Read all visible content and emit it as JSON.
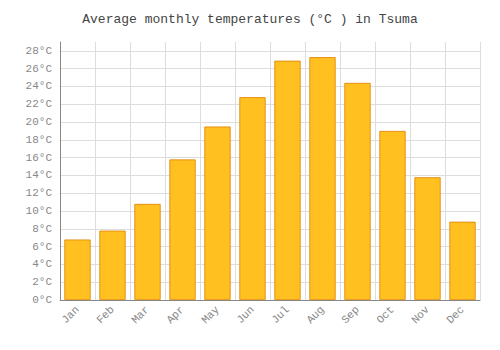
{
  "chart_data": {
    "type": "bar",
    "title": "Average monthly temperatures (°C ) in Tsuma",
    "categories": [
      "Jan",
      "Feb",
      "Mar",
      "Apr",
      "May",
      "Jun",
      "Jul",
      "Aug",
      "Sep",
      "Oct",
      "Nov",
      "Dec"
    ],
    "values": [
      6.8,
      7.8,
      10.8,
      15.8,
      19.5,
      22.8,
      26.9,
      27.3,
      24.4,
      19.0,
      13.8,
      8.8
    ],
    "color": "#FFC020",
    "ylim": [
      0,
      29
    ],
    "yticks": [
      {
        "value": 0,
        "label": "0°C"
      },
      {
        "value": 2,
        "label": "2°C"
      },
      {
        "value": 4,
        "label": "4°C"
      },
      {
        "value": 6,
        "label": "6°C"
      },
      {
        "value": 8,
        "label": "8°C"
      },
      {
        "value": 10,
        "label": "10°C"
      },
      {
        "value": 12,
        "label": "12°C"
      },
      {
        "value": 14,
        "label": "14°C"
      },
      {
        "value": 16,
        "label": "16°C"
      },
      {
        "value": 18,
        "label": "18°C"
      },
      {
        "value": 20,
        "label": "20°C"
      },
      {
        "value": 22,
        "label": "22°C"
      },
      {
        "value": 24,
        "label": "24°C"
      },
      {
        "value": 26,
        "label": "26°C"
      },
      {
        "value": 28,
        "label": "28°C"
      }
    ],
    "grid": true
  }
}
